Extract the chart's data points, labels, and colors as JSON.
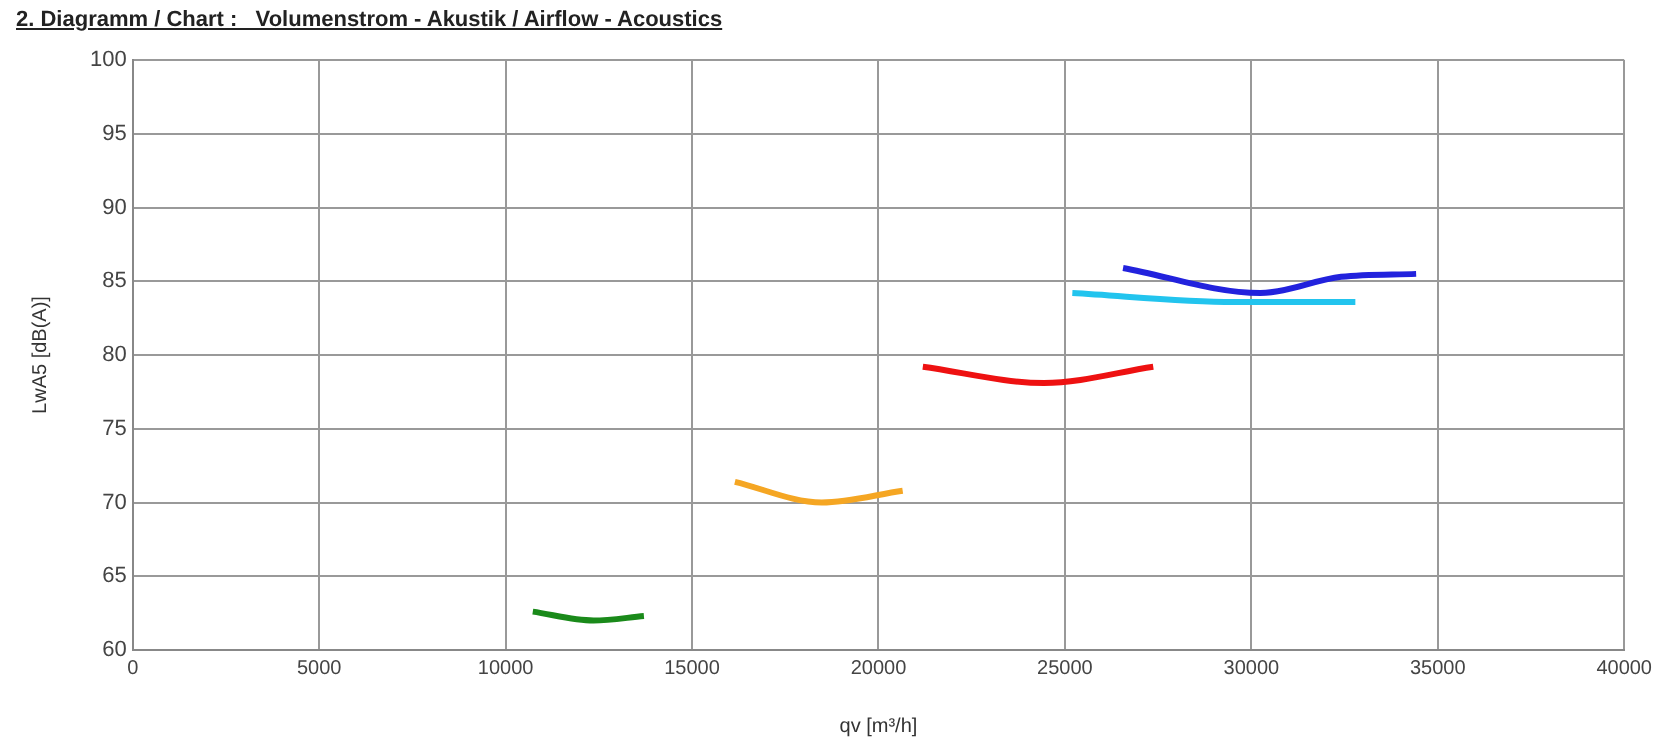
{
  "chart_data": {
    "type": "line",
    "title": "2. Diagramm / Chart :   Volumenstrom - Akustik / Airflow - Acoustics",
    "xlabel": "qv [m³/h]",
    "ylabel": "LwA5 [dB(A)]",
    "xlim": [
      0,
      40000
    ],
    "xticks": [
      0,
      5000,
      10000,
      15000,
      20000,
      25000,
      30000,
      35000,
      40000
    ],
    "ylim": [
      60,
      100
    ],
    "yticks": [
      60,
      65,
      70,
      75,
      80,
      85,
      90,
      95,
      100
    ],
    "grid": true,
    "legend": false,
    "marker": "none",
    "line_style": "solid",
    "series": [
      {
        "color": "#1a8a1a",
        "x": [
          10730,
          12360,
          13710
        ],
        "values": [
          62.6,
          62.0,
          62.3
        ]
      },
      {
        "color": "#f5a623",
        "x": [
          16150,
          18480,
          20650
        ],
        "values": [
          71.4,
          70.0,
          70.8
        ]
      },
      {
        "color": "#ee1111",
        "x": [
          21190,
          24440,
          27370
        ],
        "values": [
          79.2,
          78.1,
          79.2
        ]
      },
      {
        "color": "#22c4ee",
        "x": [
          25200,
          29540,
          32790
        ],
        "values": [
          84.2,
          83.6,
          83.6
        ]
      },
      {
        "color": "#2222dd",
        "x": [
          26560,
          30240,
          32410,
          34420
        ],
        "values": [
          85.9,
          84.2,
          85.3,
          85.5
        ]
      }
    ]
  }
}
